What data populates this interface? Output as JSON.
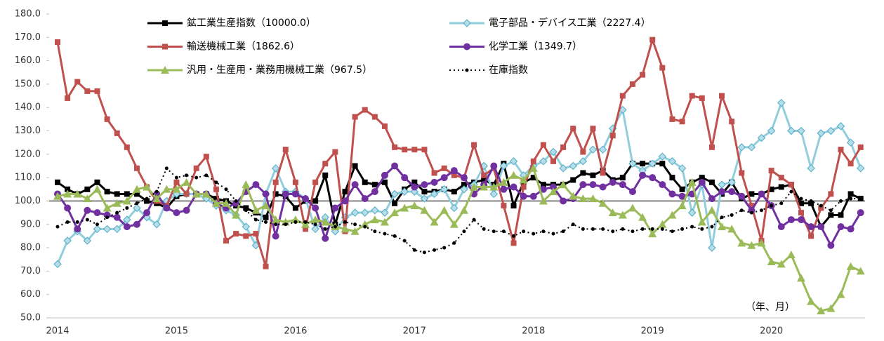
{
  "chart_data": {
    "type": "line",
    "categories": [
      "2014",
      null,
      null,
      null,
      null,
      null,
      null,
      null,
      null,
      null,
      null,
      null,
      "2015",
      null,
      null,
      null,
      null,
      null,
      null,
      null,
      null,
      null,
      null,
      null,
      "2016",
      null,
      null,
      null,
      null,
      null,
      null,
      null,
      null,
      null,
      null,
      null,
      "2017",
      null,
      null,
      null,
      null,
      null,
      null,
      null,
      null,
      null,
      null,
      null,
      "2018",
      null,
      null,
      null,
      null,
      null,
      null,
      null,
      null,
      null,
      null,
      null,
      "2019",
      null,
      null,
      null,
      null,
      null,
      null,
      null,
      null,
      null,
      null,
      null,
      "2020",
      null,
      null,
      null,
      null,
      null,
      null,
      null,
      null,
      null
    ],
    "ylim": [
      50,
      180
    ],
    "yticks": [
      {
        "value": 50,
        "label": "50.0"
      },
      {
        "value": 60,
        "label": "60.0"
      },
      {
        "value": 70,
        "label": "70.0"
      },
      {
        "value": 80,
        "label": "80.0"
      },
      {
        "value": 90,
        "label": "90.0"
      },
      {
        "value": 100,
        "label": "100.0"
      },
      {
        "value": 110,
        "label": "110.0"
      },
      {
        "value": 120,
        "label": "120.0"
      },
      {
        "value": 130,
        "label": "130.0"
      },
      {
        "value": 140,
        "label": "140.0"
      },
      {
        "value": 150,
        "label": "150.0"
      },
      {
        "value": 160,
        "label": "160.0"
      },
      {
        "value": 170,
        "label": "170.0"
      },
      {
        "value": 180,
        "label": "180.0"
      }
    ],
    "reference_line": 100,
    "annotation": "（年、月）",
    "series": [
      {
        "name": "鉱工業生産指数（10000.0）",
        "color": "#000000",
        "marker": "square",
        "values": [
          108,
          105,
          103,
          105,
          108,
          104,
          103,
          103,
          103,
          100,
          99,
          97,
          102,
          103,
          103,
          103,
          101,
          100,
          98,
          97,
          95,
          93,
          103,
          102,
          97,
          100,
          100,
          111,
          90,
          104,
          115,
          108,
          107,
          108,
          99,
          105,
          108,
          104,
          104,
          105,
          104,
          107,
          108,
          109,
          107,
          116,
          98,
          108,
          110,
          107,
          107,
          107,
          109,
          112,
          111,
          113,
          109,
          110,
          116,
          116,
          116,
          116,
          110,
          105,
          108,
          110,
          108,
          103,
          108,
          101,
          103,
          103,
          105,
          106,
          107,
          99,
          99,
          89,
          94,
          94,
          103,
          101
        ]
      },
      {
        "name": "電子部品・デバイス工業（2227.4）",
        "color": "#92cddc",
        "marker": "diamond",
        "values": [
          73,
          83,
          87,
          83,
          88,
          88,
          88,
          92,
          97,
          93,
          90,
          100,
          103,
          103,
          103,
          101,
          98,
          96,
          94,
          89,
          81,
          103,
          114,
          104,
          104,
          101,
          88,
          93,
          87,
          93,
          95,
          95,
          96,
          95,
          103,
          104,
          104,
          101,
          103,
          105,
          97,
          105,
          107,
          115,
          103,
          115,
          117,
          111,
          115,
          117,
          121,
          114,
          115,
          117,
          122,
          122,
          131,
          139,
          116,
          113,
          116,
          119,
          117,
          114,
          95,
          107,
          80,
          107,
          108,
          123,
          123,
          127,
          130,
          142,
          130,
          130,
          114,
          129,
          130,
          132,
          125,
          114
        ]
      },
      {
        "name": "輸送機械工業（1862.6）",
        "color": "#c0504d",
        "marker": "square",
        "values": [
          168,
          144,
          151,
          147,
          147,
          135,
          129,
          123,
          114,
          106,
          100,
          98,
          108,
          103,
          114,
          119,
          105,
          83,
          86,
          85,
          86,
          72,
          108,
          122,
          108,
          88,
          108,
          116,
          121,
          87,
          136,
          139,
          136,
          132,
          123,
          122,
          122,
          122,
          112,
          114,
          111,
          110,
          124,
          111,
          114,
          98,
          82,
          106,
          117,
          124,
          117,
          123,
          131,
          121,
          131,
          112,
          128,
          145,
          150,
          154,
          169,
          157,
          135,
          134,
          145,
          144,
          123,
          145,
          134,
          112,
          98,
          83,
          113,
          110,
          107,
          95,
          85,
          97,
          103,
          122,
          116,
          123
        ]
      },
      {
        "name": "化学工業（1349.7）",
        "color": "#7030a0",
        "marker": "circle",
        "values": [
          103,
          97,
          88,
          96,
          95,
          94,
          93,
          89,
          90,
          95,
          103,
          97,
          95,
          96,
          103,
          103,
          99,
          97,
          99,
          104,
          107,
          103,
          85,
          103,
          103,
          101,
          97,
          84,
          97,
          100,
          107,
          101,
          104,
          111,
          115,
          110,
          106,
          107,
          108,
          110,
          113,
          110,
          103,
          107,
          115,
          105,
          106,
          102,
          102,
          105,
          106,
          100,
          101,
          107,
          107,
          106,
          108,
          107,
          104,
          111,
          110,
          107,
          103,
          102,
          103,
          108,
          101,
          104,
          104,
          102,
          96,
          103,
          98,
          89,
          92,
          92,
          89,
          89,
          81,
          89,
          88,
          95
        ]
      },
      {
        "name": "汎用・生産用・業務用機械工業（967.5）",
        "color": "#9bbb59",
        "marker": "triangle",
        "values": [
          102,
          103,
          103,
          101,
          105,
          97,
          99,
          100,
          105,
          106,
          101,
          105,
          105,
          108,
          103,
          103,
          99,
          99,
          94,
          107,
          96,
          98,
          92,
          91,
          92,
          90,
          92,
          91,
          89,
          88,
          87,
          90,
          92,
          91,
          95,
          97,
          98,
          96,
          91,
          96,
          90,
          96,
          106,
          106,
          106,
          108,
          111,
          109,
          114,
          100,
          104,
          107,
          102,
          101,
          101,
          99,
          95,
          94,
          97,
          93,
          86,
          90,
          94,
          98,
          108,
          91,
          96,
          89,
          88,
          82,
          81,
          82,
          74,
          73,
          77,
          67,
          57,
          53,
          54,
          60,
          72,
          70
        ]
      },
      {
        "name": "在庫指数",
        "color": "#000000",
        "marker": "dot",
        "dashed": true,
        "values": [
          89,
          91,
          91,
          92,
          90,
          93,
          95,
          97,
          99,
          101,
          104,
          114,
          110,
          111,
          110,
          111,
          108,
          105,
          100,
          96,
          92,
          91,
          90,
          90,
          91,
          91,
          90,
          88,
          89,
          91,
          90,
          89,
          87,
          86,
          85,
          83,
          79,
          78,
          79,
          80,
          82,
          87,
          92,
          88,
          87,
          87,
          85,
          87,
          86,
          87,
          86,
          87,
          90,
          88,
          88,
          88,
          87,
          88,
          87,
          88,
          88,
          88,
          87,
          88,
          89,
          88,
          89,
          93,
          94,
          96,
          95,
          96,
          98,
          99,
          104,
          101,
          100,
          98,
          96,
          100,
          101,
          101
        ]
      }
    ]
  }
}
